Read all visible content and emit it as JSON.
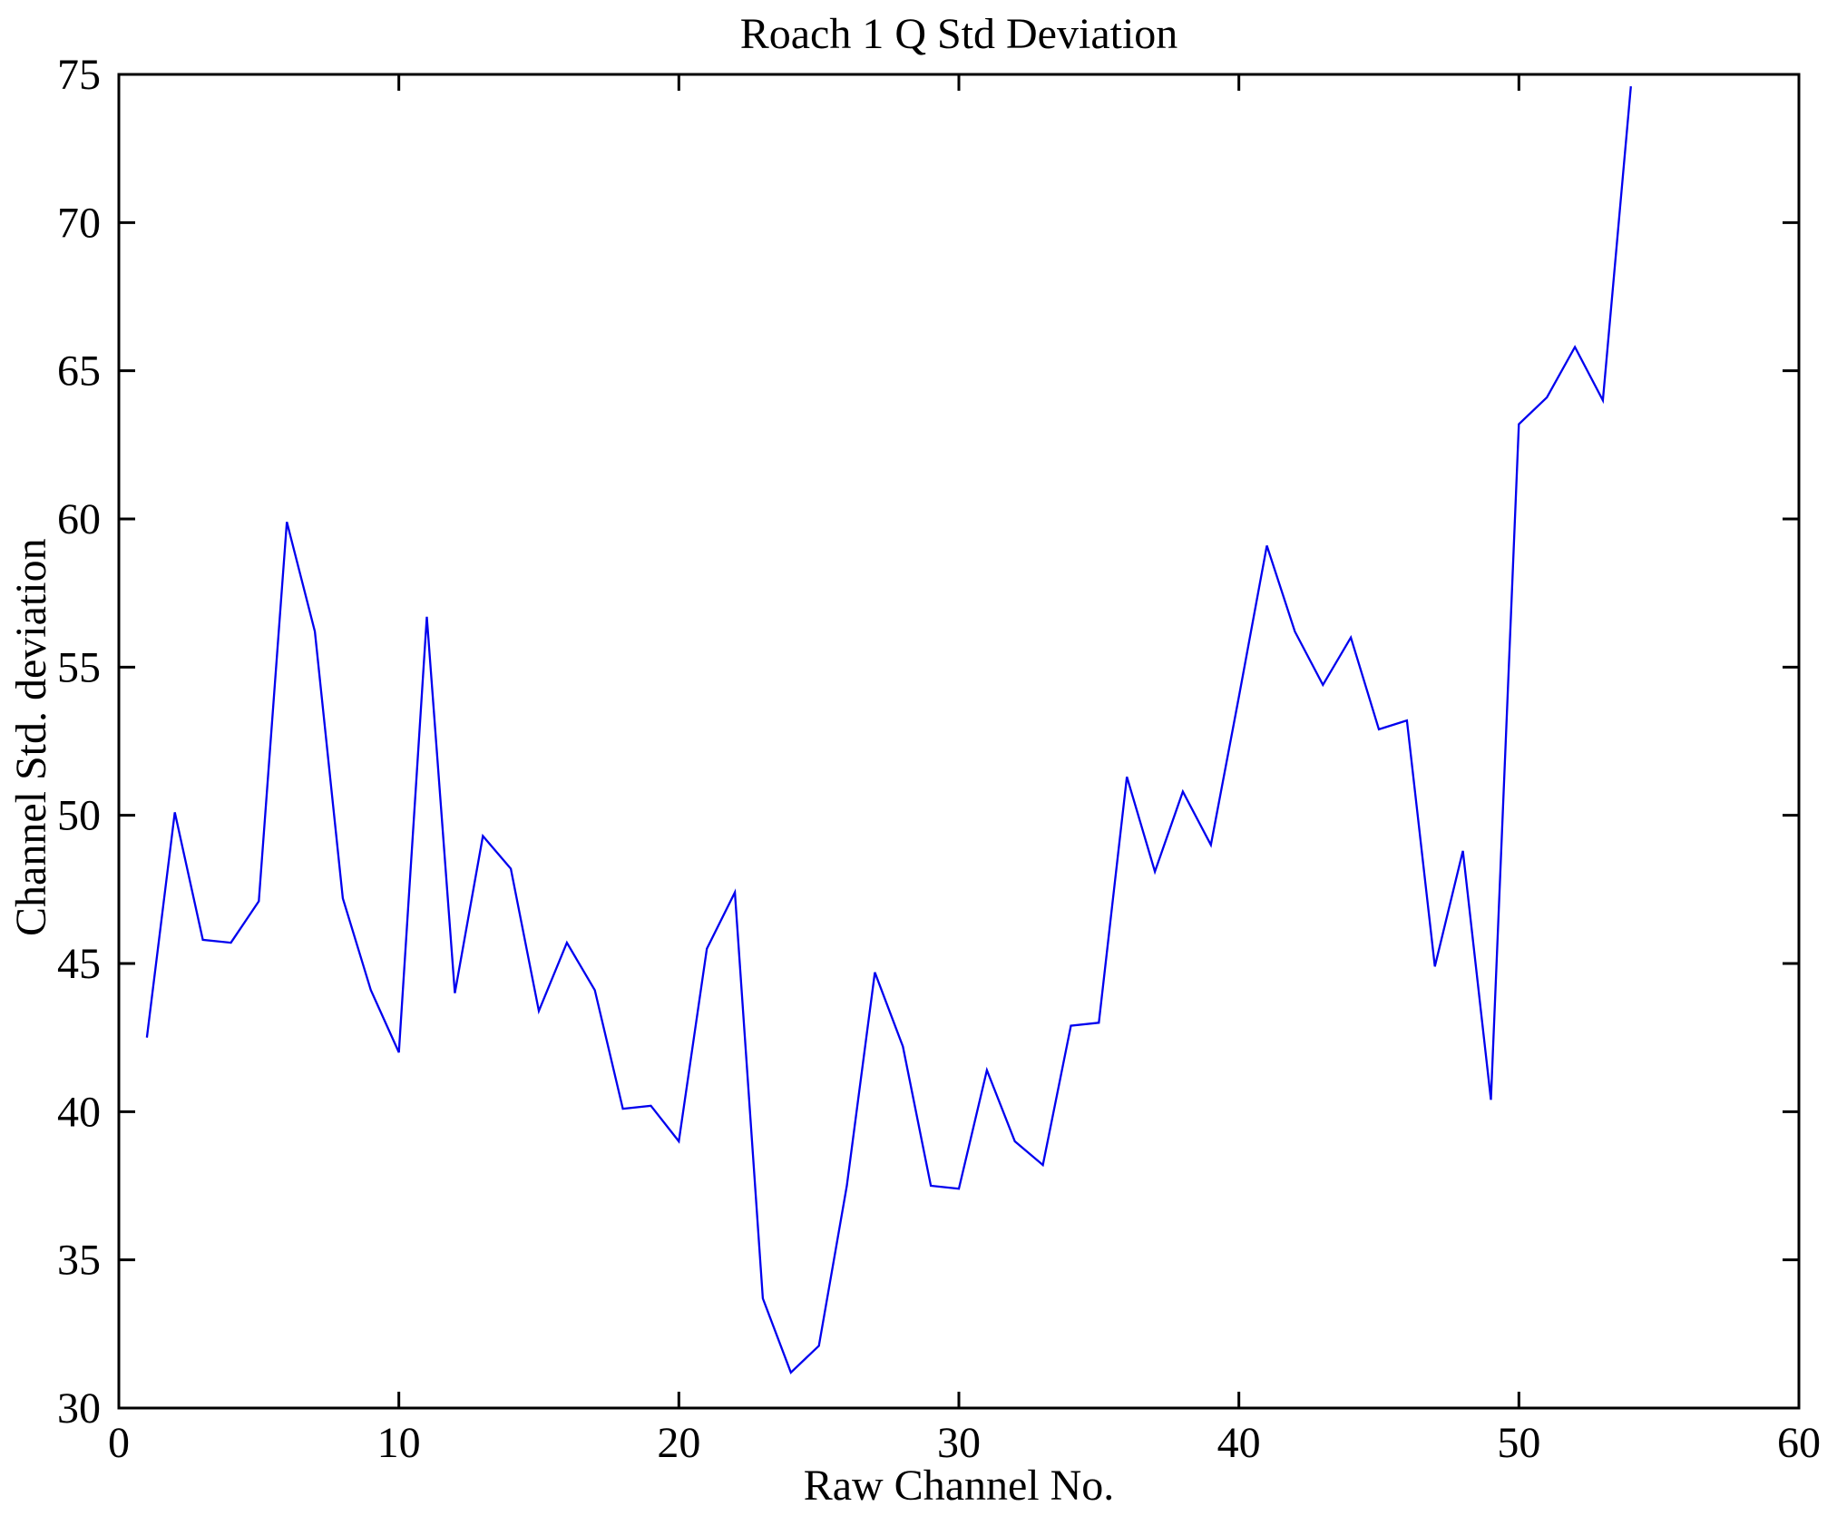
{
  "figure": {
    "title": "Roach 1 Q Std Deviation",
    "xlabel": "Raw Channel No.",
    "ylabel": "Channel Std. deviation"
  },
  "chart_data": {
    "type": "line",
    "title": "Roach 1 Q Std Deviation",
    "xlabel": "Raw Channel No.",
    "ylabel": "Channel Std. deviation",
    "grid": false,
    "legend_position": "none",
    "line_color": "#0000EE",
    "axis_color": "#000000",
    "xlim": [
      0,
      60
    ],
    "ylim": [
      30,
      75
    ],
    "xticks": [
      0,
      10,
      20,
      30,
      40,
      50,
      60
    ],
    "yticks": [
      30,
      35,
      40,
      45,
      50,
      55,
      60,
      65,
      70,
      75
    ],
    "x": [
      1,
      2,
      3,
      4,
      5,
      6,
      7,
      8,
      9,
      10,
      11,
      12,
      13,
      14,
      15,
      16,
      17,
      18,
      19,
      20,
      21,
      22,
      23,
      24,
      25,
      26,
      27,
      28,
      29,
      30,
      31,
      32,
      33,
      34,
      35,
      36,
      37,
      38,
      39,
      40,
      41,
      42,
      43,
      44,
      45,
      46,
      47,
      48,
      49,
      50,
      51,
      52,
      53,
      54
    ],
    "values": [
      42.5,
      50.1,
      45.8,
      45.7,
      47.1,
      59.9,
      56.2,
      47.2,
      44.1,
      42.0,
      56.7,
      44.0,
      49.3,
      48.2,
      43.4,
      45.7,
      44.1,
      40.1,
      40.2,
      39.0,
      45.5,
      47.4,
      33.7,
      31.2,
      32.1,
      37.5,
      44.7,
      42.2,
      37.5,
      37.4,
      41.4,
      39.0,
      38.2,
      42.9,
      43.0,
      51.3,
      48.1,
      50.8,
      49.0,
      54.0,
      59.1,
      56.2,
      54.4,
      56.0,
      52.9,
      53.2,
      44.9,
      48.8,
      40.4,
      63.2,
      64.1,
      65.8,
      64.0,
      74.6
    ]
  }
}
